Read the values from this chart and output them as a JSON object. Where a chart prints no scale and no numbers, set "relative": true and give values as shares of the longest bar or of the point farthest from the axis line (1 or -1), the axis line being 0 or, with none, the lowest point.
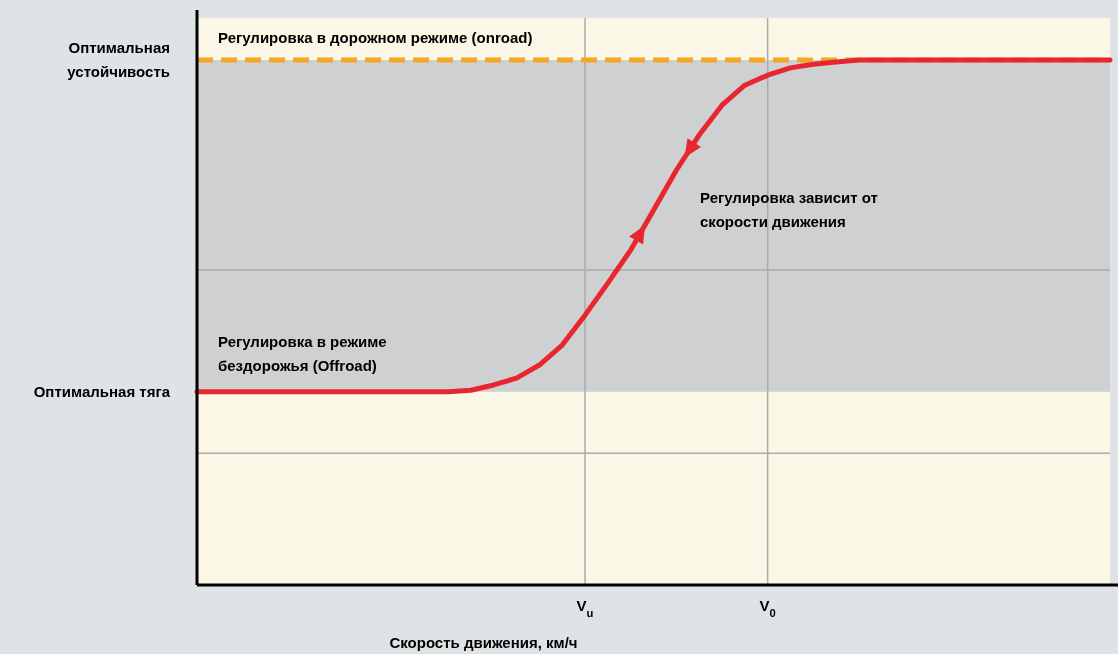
{
  "chart_data": {
    "type": "line",
    "relative": true,
    "xlabel": "Скорость движения, км/ч",
    "categories": [
      null,
      null,
      null,
      null,
      null,
      null,
      null,
      null,
      null,
      null,
      null,
      null,
      null,
      null,
      null,
      null,
      null,
      "V$_{u}$",
      null,
      null,
      null,
      null,
      null,
      null,
      null,
      "V$_{0}$",
      null,
      null,
      null,
      null,
      null,
      null,
      null,
      null,
      null,
      null,
      null,
      null,
      null,
      null,
      null
    ],
    "series": [
      {
        "color": "#e8262f",
        "values": [
          0.368,
          0.368,
          0.368,
          0.368,
          0.368,
          0.368,
          0.368,
          0.368,
          0.368,
          0.368,
          0.368,
          0.368,
          0.371,
          0.381,
          0.394,
          0.419,
          0.457,
          0.514,
          0.575,
          0.638,
          0.714,
          0.79,
          0.857,
          0.914,
          0.952,
          0.971,
          0.985,
          0.992,
          0.996,
          1,
          1,
          1,
          1,
          1,
          1,
          1,
          1,
          1,
          1,
          1,
          1
        ]
      }
    ],
    "grid": "x",
    "marker": "none",
    "line_style": "solid",
    "annotations": [
      "Регулировка в дорожном режиме (onroad)",
      "Регулировка в режиме бездорожья (Offroad)",
      "Регулировка зависит от скорости движения",
      "Оптимальная устойчивость",
      "Оптимальная тяга"
    ]
  }
}
